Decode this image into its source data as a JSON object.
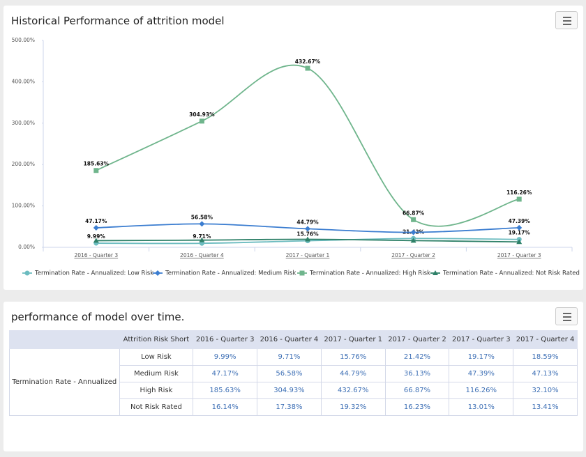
{
  "chart_data": {
    "type": "line",
    "title": "Historical Performance of attrition model",
    "categories": [
      "2016 - Quarter 3",
      "2016 - Quarter 4",
      "2017 - Quarter 1",
      "2017 - Quarter 2",
      "2017 - Quarter 3"
    ],
    "ylim": [
      0,
      500
    ],
    "yticks": [
      {
        "value": 0,
        "label": "0.00%"
      },
      {
        "value": 100,
        "label": "100.00%"
      },
      {
        "value": 200,
        "label": "200.00%"
      },
      {
        "value": 300,
        "label": "300.00%"
      },
      {
        "value": 400,
        "label": "400.00%"
      },
      {
        "value": 500,
        "label": "500.00%"
      }
    ],
    "grid": false,
    "legend": "bottom",
    "series": [
      {
        "name": "Termination Rate - Annualized: Low Risk",
        "color": "#6cbcc0",
        "marker": "circle",
        "values": [
          9.99,
          9.71,
          15.76,
          21.42,
          19.17
        ],
        "value_labels": [
          "9.99%",
          "9.71%",
          "15.76%",
          "21.42%",
          "19.17%"
        ]
      },
      {
        "name": "Termination Rate - Annualized: Medium Risk",
        "color": "#3b7dd0",
        "marker": "diamond",
        "values": [
          47.17,
          56.58,
          44.79,
          36.13,
          47.39
        ],
        "value_labels": [
          "47.17%",
          "56.58%",
          "44.79%",
          null,
          "47.39%"
        ]
      },
      {
        "name": "Termination Rate - Annualized: High Risk",
        "color": "#6fb58c",
        "marker": "square",
        "values": [
          185.63,
          304.93,
          432.67,
          66.87,
          116.26
        ],
        "value_labels": [
          "185.63%",
          "304.93%",
          "432.67%",
          "66.87%",
          "116.26%"
        ]
      },
      {
        "name": "Termination Rate - Annualized: Not Risk Rated",
        "color": "#2e8068",
        "marker": "triangle",
        "values": [
          16.14,
          17.38,
          19.32,
          16.23,
          13.01
        ]
      }
    ]
  },
  "table": {
    "title": "performance of model over time.",
    "columns": [
      "Attrition Risk Short",
      "2016 - Quarter 3",
      "2016 - Quarter 4",
      "2017 - Quarter 1",
      "2017 - Quarter 2",
      "2017 - Quarter 3",
      "2017 - Quarter 4"
    ],
    "row_group": "Termination Rate - Annualized",
    "rows": [
      [
        "Low Risk",
        "9.99%",
        "9.71%",
        "15.76%",
        "21.42%",
        "19.17%",
        "18.59%"
      ],
      [
        "Medium Risk",
        "47.17%",
        "56.58%",
        "44.79%",
        "36.13%",
        "47.39%",
        "47.13%"
      ],
      [
        "High Risk",
        "185.63%",
        "304.93%",
        "432.67%",
        "66.87%",
        "116.26%",
        "32.10%"
      ],
      [
        "Not Risk Rated",
        "16.14%",
        "17.38%",
        "19.32%",
        "16.23%",
        "13.01%",
        "13.41%"
      ]
    ]
  }
}
